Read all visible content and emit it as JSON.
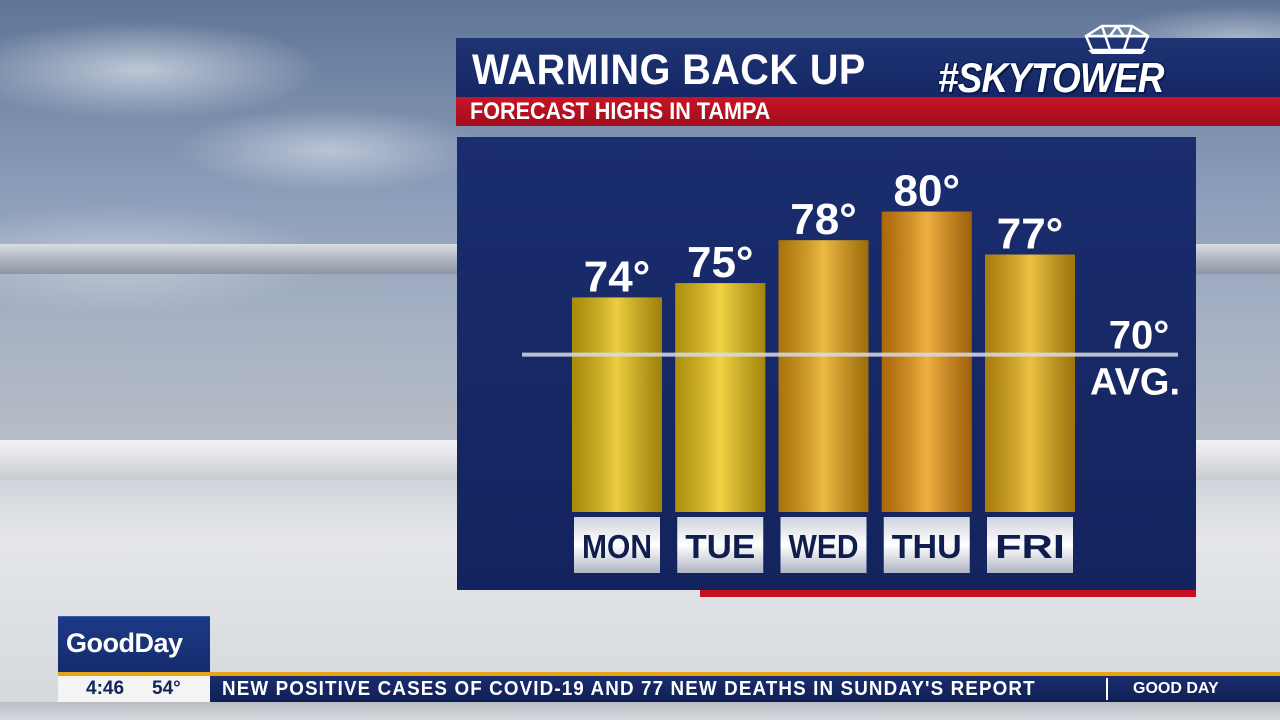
{
  "header": {
    "title": "WARMING BACK UP",
    "subtitle": "FORECAST HIGHS IN TAMPA",
    "logo_text": "#SKYTOWER"
  },
  "chart_data": {
    "type": "bar",
    "title": "WARMING BACK UP",
    "subtitle": "FORECAST HIGHS IN TAMPA",
    "categories": [
      "MON",
      "TUE",
      "WED",
      "THU",
      "FRI"
    ],
    "values": [
      74,
      75,
      78,
      80,
      77
    ],
    "data_labels": [
      "74°",
      "75°",
      "78°",
      "80°",
      "77°"
    ],
    "reference_line": {
      "value": 70,
      "label_value": "70°",
      "label": "AVG."
    },
    "bar_colors": [
      "#e0b80e",
      "#e8c012",
      "#e29a10",
      "#e58a0e",
      "#e0a612"
    ],
    "ylim": [
      59,
      82
    ],
    "grid": false
  },
  "ticker": {
    "brand_logo": "GoodDay",
    "time": "4:46",
    "temperature": "54°",
    "headline": "NEW POSITIVE CASES OF COVID-19 AND 77 NEW DEATHS IN SUNDAY'S REPORT",
    "brand_tag": "GOOD DAY"
  },
  "colors": {
    "panel_navy": "#13235d",
    "header_red": "#c81426",
    "accent_gold": "#e8a316"
  }
}
